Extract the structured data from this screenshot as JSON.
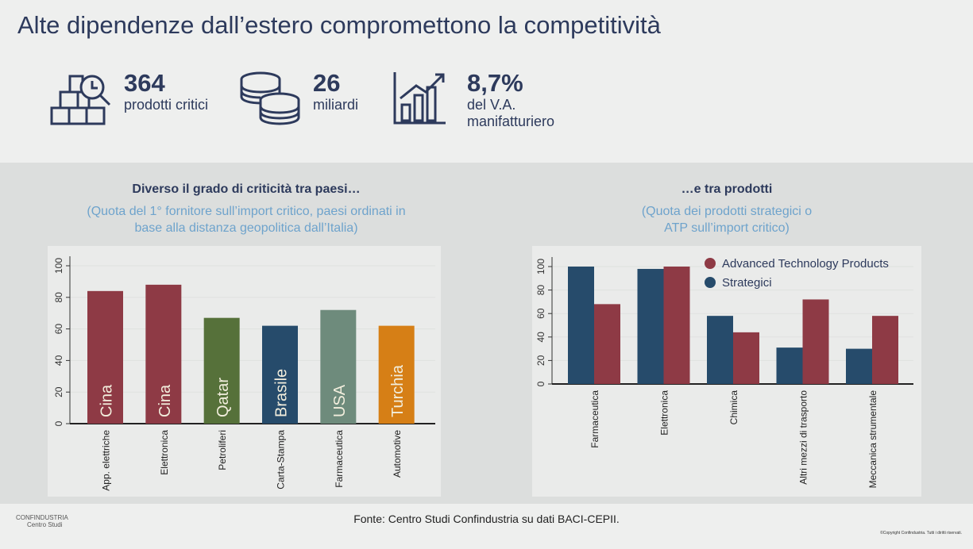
{
  "title": "Alte dipendenze dall’estero compromettono la competitività",
  "kpis": [
    {
      "value": "364",
      "label": "prodotti critici",
      "icon": "boxes-magnifier-icon"
    },
    {
      "value": "26",
      "label": "miliardi",
      "icon": "coins-icon"
    },
    {
      "value": "8,7%",
      "label": "del V.A.",
      "label2": "manifatturiero",
      "icon": "bar-chart-growth-icon"
    }
  ],
  "footer": {
    "source": "Fonte: Centro Studi Confindustria su dati BACI-CEPII.",
    "logo_name": "CONFINDUSTRIA",
    "logo_sub": "Centro Studi",
    "copyright": "©Copyright Confindustria. Tutti i diritti riservati."
  },
  "chart_data": [
    {
      "type": "bar",
      "title": "Diverso il grado di criticità tra paesi…",
      "subtitle1": "(Quota del 1° fornitore sull’import critico, paesi ordinati in",
      "subtitle2": "base alla distanza geopolitica dall’Italia)",
      "categories": [
        "App. elettriche",
        "Elettronica",
        "Petroliferi",
        "Carta-Stampa",
        "Farmaceutica",
        "Automotive"
      ],
      "values": [
        84,
        88,
        67,
        62,
        72,
        62
      ],
      "bar_labels": [
        "Cina",
        "Cina",
        "Qatar",
        "Brasile",
        "USA",
        "Turchia"
      ],
      "colors": [
        "#8e3a45",
        "#8e3a45",
        "#56713a",
        "#264b6b",
        "#6e8b7c",
        "#d67f16"
      ],
      "ylim": [
        0,
        100
      ],
      "yticks": [
        "0",
        "20",
        "40",
        "60",
        "80",
        "100"
      ]
    },
    {
      "type": "bar",
      "title": "…e tra prodotti",
      "subtitle1": "(Quota dei prodotti strategici o",
      "subtitle2": "ATP sull’import critico)",
      "categories": [
        "Farmaceutica",
        "Elettronica",
        "Chimica",
        "Altri mezzi di trasporto",
        "Meccanica strumentale"
      ],
      "series": [
        {
          "name": "Strategici",
          "color": "#264b6b",
          "values": [
            100,
            98,
            58,
            31,
            30
          ]
        },
        {
          "name": "Advanced Technology Products",
          "color": "#8e3a45",
          "values": [
            68,
            100,
            44,
            72,
            58
          ]
        }
      ],
      "legend": [
        "Advanced Technology Products",
        "Strategici"
      ],
      "legend_position": "top-right",
      "ylim": [
        0,
        100
      ],
      "yticks": [
        "0",
        "20",
        "40",
        "60",
        "80",
        "100"
      ]
    }
  ]
}
